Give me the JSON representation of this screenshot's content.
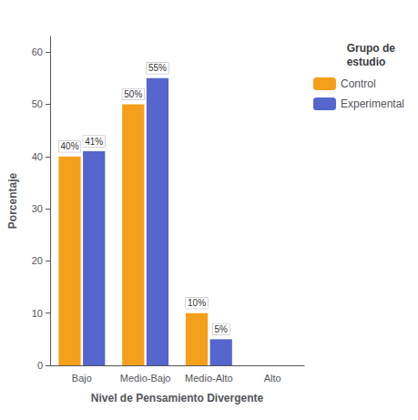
{
  "chart_data": {
    "type": "bar",
    "categories": [
      "Bajo",
      "Medio-Bajo",
      "Medio-Alto",
      "Alto"
    ],
    "series": [
      {
        "name": "Control",
        "color": "#F5A01A",
        "values": [
          40,
          50,
          10,
          0
        ],
        "value_labels": [
          "40%",
          "50%",
          "10%",
          null
        ]
      },
      {
        "name": "Experimental",
        "color": "#5566CC",
        "values": [
          41,
          55,
          5,
          0
        ],
        "value_labels": [
          "41%",
          "55%",
          "5%",
          null
        ]
      }
    ],
    "xlabel": "Nivel de Pensamiento Divergente",
    "ylabel": "Porcentaje",
    "ylim": [
      0,
      63
    ],
    "yticks": [
      0,
      10,
      20,
      30,
      40,
      50,
      60
    ],
    "grid": false,
    "legend": "right",
    "legend_title": "Grupo de\nestudio",
    "data_labels": true
  }
}
